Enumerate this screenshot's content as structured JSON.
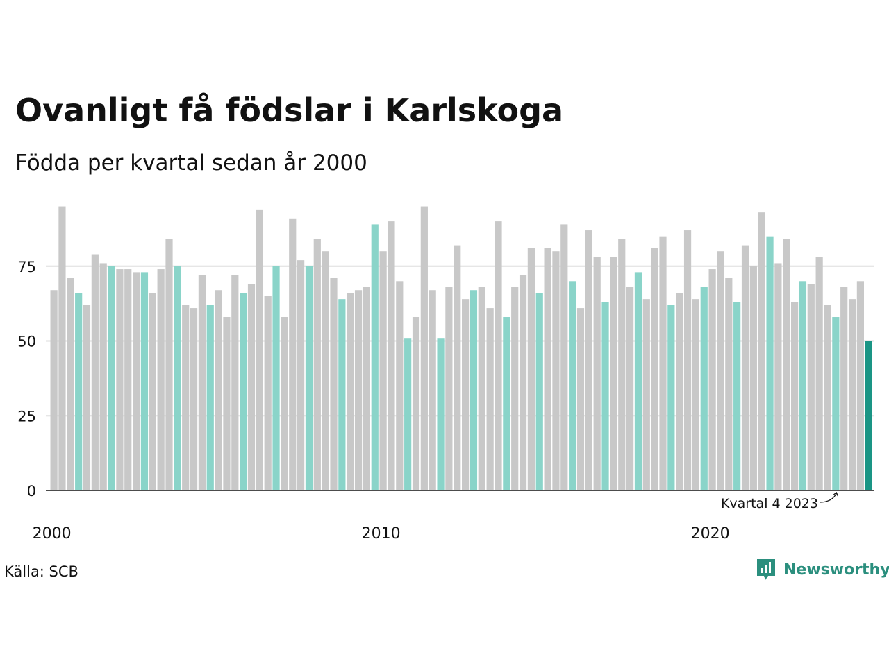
{
  "title": "Ovanligt få födslar i Karlskoga",
  "subtitle": "Födda per kvartal sedan år 2000",
  "source": "Källa: SCB",
  "brand": {
    "name": "Newsworthy",
    "logo_icon": "newsworthy-logo-icon",
    "color": "#2b8f7e"
  },
  "colors": {
    "default_bar": "#c8c8c8",
    "same_quarter_bar": "#8ad4c9",
    "latest_bar": "#1a9585",
    "gridline": "#dddddd",
    "axis": "#111111"
  },
  "chart_data": {
    "type": "bar",
    "title": "Ovanligt få födslar i Karlskoga",
    "subtitle": "Födda per kvartal sedan år 2000",
    "xlabel": "",
    "ylabel": "",
    "ylim": [
      0,
      95
    ],
    "yticks": [
      0,
      25,
      50,
      75
    ],
    "xtick_labels": [
      "2000",
      "2010",
      "2020"
    ],
    "grid": true,
    "legend": "none",
    "start_year": 2000,
    "annotation": {
      "text": "Kvartal 4 2023",
      "target_index": 95
    },
    "values": [
      67,
      95,
      71,
      66,
      62,
      79,
      76,
      75,
      74,
      74,
      73,
      73,
      66,
      74,
      84,
      75,
      62,
      61,
      72,
      62,
      67,
      58,
      72,
      66,
      69,
      94,
      65,
      75,
      58,
      91,
      77,
      75,
      84,
      80,
      71,
      64,
      66,
      67,
      68,
      89,
      80,
      90,
      70,
      51,
      58,
      95,
      67,
      51,
      68,
      82,
      64,
      67,
      68,
      61,
      90,
      58,
      68,
      72,
      81,
      66,
      81,
      80,
      89,
      70,
      61,
      87,
      78,
      63,
      78,
      84,
      68,
      73,
      64,
      81,
      85,
      62,
      66,
      87,
      64,
      68,
      74,
      80,
      71,
      63,
      82,
      75,
      93,
      85,
      76,
      84,
      63,
      70,
      69,
      78,
      62,
      58,
      68,
      64,
      70,
      50
    ]
  }
}
